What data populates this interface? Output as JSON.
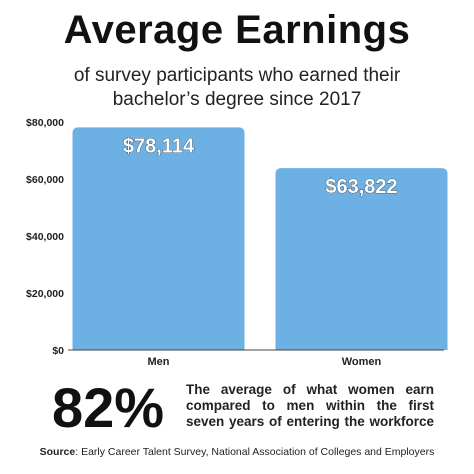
{
  "header": {
    "title": "Average Earnings",
    "subtitle_line1": "of survey participants who earned their",
    "subtitle_line2": "bachelor’s degree since 2017"
  },
  "chart_data": {
    "type": "bar",
    "categories": [
      "Men",
      "Women"
    ],
    "values": [
      78114,
      63822
    ],
    "value_labels": [
      "$78,114",
      "$63,822"
    ],
    "yticks": [
      0,
      20000,
      40000,
      60000,
      80000
    ],
    "ytick_labels": [
      "$0",
      "$20,000",
      "$40,000",
      "$60,000",
      "$80,000"
    ],
    "ylim": [
      0,
      80000
    ],
    "bar_color": "#6cb0e4",
    "grid": false
  },
  "stat": {
    "value": "82%",
    "description": "The average of what women earn compared to men within the first seven years of entering the workforce"
  },
  "footer": {
    "source_label": "Source",
    "source_text": ": Early Career Talent Survey, National Association of Colleges and Employers"
  }
}
